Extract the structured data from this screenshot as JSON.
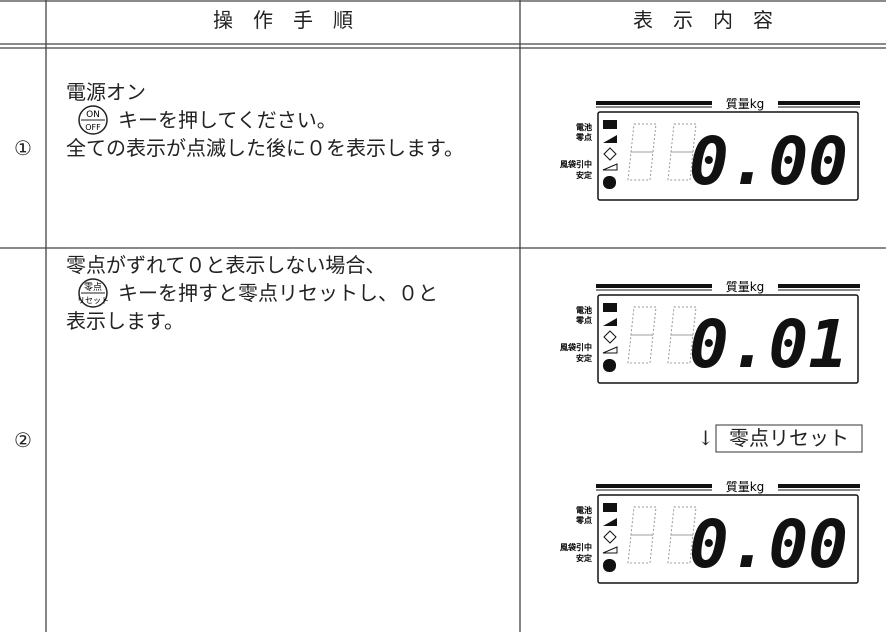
{
  "table": {
    "header": {
      "procedure": "操　作　手　順",
      "display": "表　示　内　容"
    },
    "rows": [
      {
        "number": "①",
        "steps": [
          "電源オン",
          "キーを押してください。",
          "全ての表示が点滅した後に０を表示します。"
        ],
        "key": {
          "top": "ON",
          "bottom": "OFF"
        },
        "displays": [
          {
            "title": "質量kg",
            "indicators": [
              "電池",
              "零点",
              "風袋引中",
              "安定"
            ],
            "reading": "0.00"
          }
        ]
      },
      {
        "number": "②",
        "steps": [
          "零点がずれて０と表示しない場合、",
          "キーを押すと零点リセットし、０と",
          "表示します。"
        ],
        "key": {
          "top": "零点",
          "bottom": "リセット"
        },
        "displays": [
          {
            "title": "質量kg",
            "indicators": [
              "電池",
              "零点",
              "風袋引中",
              "安定"
            ],
            "reading": "0.01"
          },
          {
            "title": "質量kg",
            "indicators": [
              "電池",
              "零点",
              "風袋引中",
              "安定"
            ],
            "reading": "0.00"
          }
        ],
        "transition": {
          "arrow": "↓",
          "label": "零点リセット"
        }
      }
    ]
  }
}
